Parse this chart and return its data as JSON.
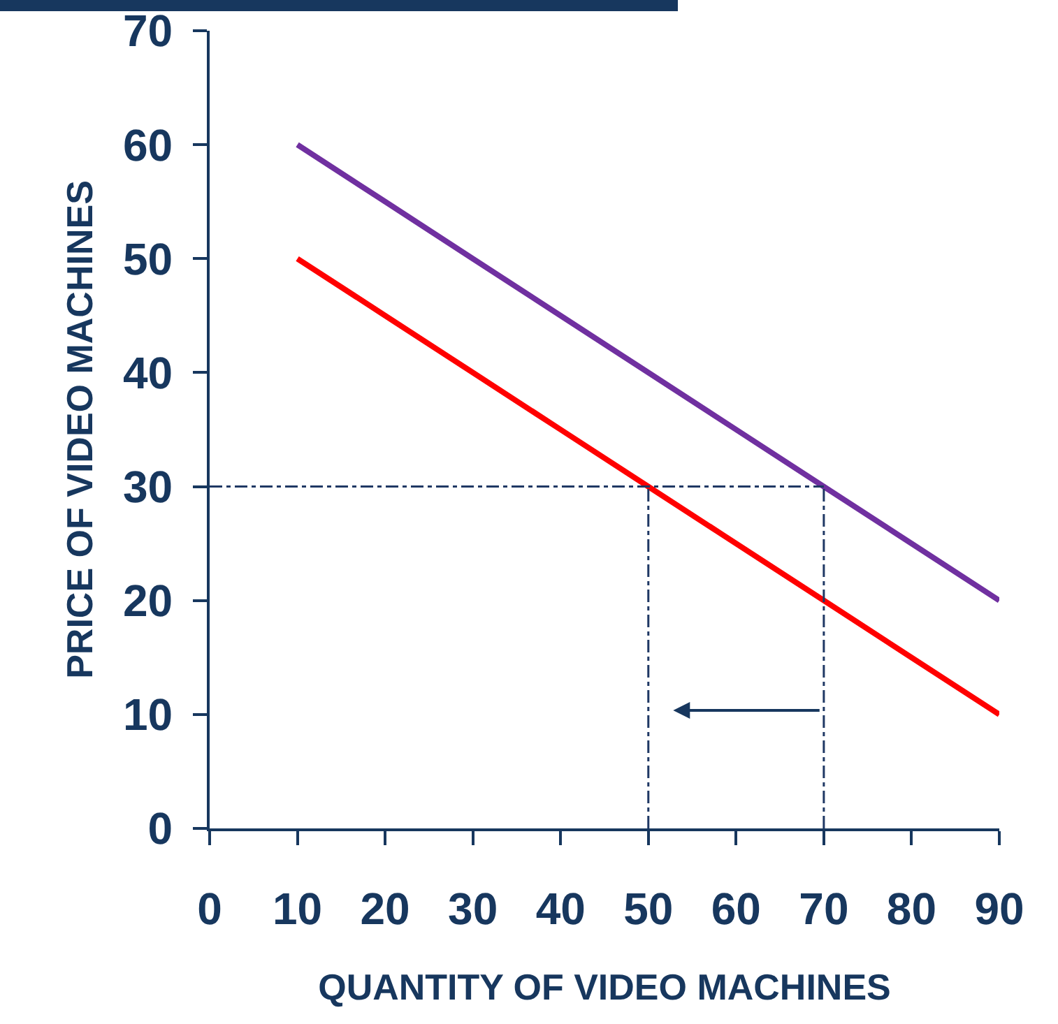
{
  "chart_data": {
    "type": "line",
    "xlabel": "QUANTITY OF VIDEO MACHINES",
    "ylabel": "PRICE OF VIDEO MACHINES",
    "xlim": [
      0,
      90
    ],
    "xticks": [
      0,
      10,
      20,
      30,
      40,
      50,
      60,
      70,
      80,
      90
    ],
    "ylim": [
      0,
      70
    ],
    "yticks": [
      0,
      10,
      20,
      30,
      40,
      50,
      60,
      70
    ],
    "grid": false,
    "marker": "none",
    "series": [
      {
        "x": [
          10,
          20,
          30,
          40,
          50,
          60,
          70,
          80,
          90
        ],
        "values": [
          60,
          55,
          50,
          45,
          40,
          35,
          30,
          25,
          20
        ],
        "color": "#7030a0",
        "line_style": "solid"
      },
      {
        "x": [
          10,
          20,
          30,
          40,
          50,
          60,
          70,
          80,
          90
        ],
        "values": [
          50,
          45,
          40,
          35,
          30,
          25,
          20,
          15,
          10
        ],
        "color": "#ff0000",
        "line_style": "solid"
      },
      {
        "x": [
          0,
          70
        ],
        "values": [
          30,
          30
        ],
        "color": "#1f3864",
        "line_style": "dashed"
      },
      {
        "x": [
          50,
          50
        ],
        "values": [
          0,
          30
        ],
        "color": "#1f3864",
        "line_style": "dashed"
      },
      {
        "x": [
          70,
          70
        ],
        "values": [
          0,
          30
        ],
        "color": "#1f3864",
        "line_style": "dashed"
      }
    ]
  }
}
